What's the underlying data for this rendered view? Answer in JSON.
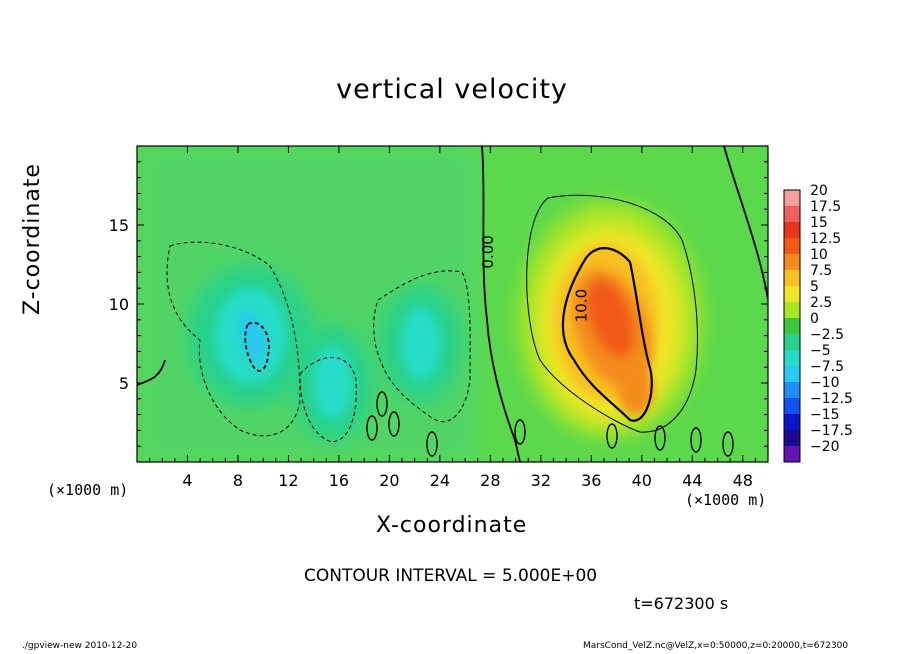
{
  "header": {
    "title": "vertical velocity"
  },
  "axes": {
    "xlabel": "X-coordinate",
    "ylabel": "Z-coordinate",
    "x_unit": "(×1000 m)",
    "y_unit": "(×1000 m)"
  },
  "footer": {
    "contour_interval": "CONTOUR INTERVAL = 5.000E+00",
    "time": "t=672300 s",
    "program": "./gpview-new  2010-12-20",
    "source": "MarsCond_VelZ.nc@VelZ,x=0:50000,z=0:20000,t=672300"
  },
  "chart_data": {
    "type": "heatmap",
    "title": "vertical velocity",
    "xlabel": "X-coordinate",
    "ylabel": "Z-coordinate",
    "xlim": [
      0,
      50
    ],
    "ylim": [
      0,
      20
    ],
    "x_ticks": [
      4,
      8,
      12,
      16,
      20,
      24,
      28,
      32,
      36,
      40,
      44,
      48
    ],
    "y_ticks": [
      5,
      10,
      15
    ],
    "x_unit": "(×1000 m)",
    "y_unit": "(×1000 m)",
    "contour_interval": 5.0,
    "contour_labels": [
      {
        "text": "0.00",
        "x": 28.2,
        "z": 13.3
      },
      {
        "text": "10.0",
        "x": 35.6,
        "z": 9.9
      }
    ],
    "colorbar": {
      "levels": [
        "20",
        "17.5",
        "15",
        "12.5",
        "10",
        "7.5",
        "5",
        "2.5",
        "0",
        "-2.5",
        "-5",
        "-7.5",
        "-10",
        "-12.5",
        "-15",
        "-17.5",
        "-20"
      ],
      "colors": [
        "#f4a0a0",
        "#f06060",
        "#e8361a",
        "#f05a14",
        "#f48c1e",
        "#f8c020",
        "#f0e628",
        "#a8e628",
        "#3cc83c",
        "#28d28c",
        "#28dcc8",
        "#28c8f0",
        "#1e8cf0",
        "#1450f0",
        "#0a14c8",
        "#1e0a8c",
        "#6414b4"
      ]
    },
    "field_features": [
      {
        "kind": "updraft",
        "x": 37.5,
        "z": 9.5,
        "peak": 12.5
      },
      {
        "kind": "updraft-lobe",
        "x": 39.5,
        "z": 4.5,
        "peak": 10
      },
      {
        "kind": "downdraft",
        "x": 9.0,
        "z": 8.0,
        "peak": -7.5
      },
      {
        "kind": "downdraft",
        "x": 22.5,
        "z": 7.5,
        "peak": -5
      },
      {
        "kind": "downdraft",
        "x": 15.5,
        "z": 5.0,
        "peak": -5
      }
    ]
  }
}
